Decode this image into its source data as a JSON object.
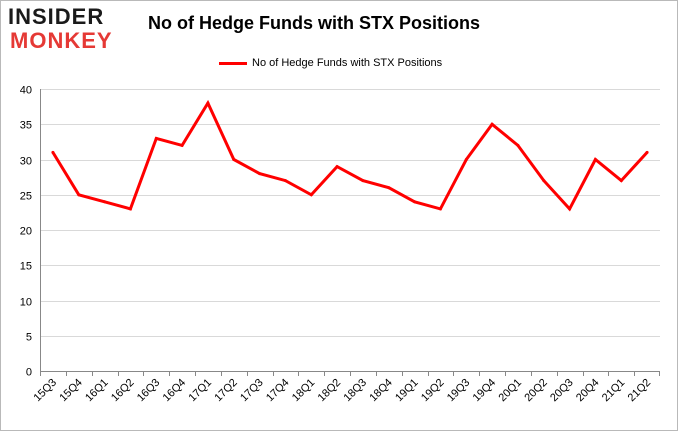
{
  "logo": {
    "line1": "INSIDER",
    "line2": "MONKEY"
  },
  "chart_data": {
    "type": "line",
    "title": "No of Hedge Funds with STX Positions",
    "xlabel": "",
    "ylabel": "",
    "categories": [
      "15Q3",
      "15Q4",
      "16Q1",
      "16Q2",
      "16Q3",
      "16Q4",
      "17Q1",
      "17Q2",
      "17Q3",
      "17Q4",
      "18Q1",
      "18Q2",
      "18Q3",
      "18Q4",
      "19Q1",
      "19Q2",
      "19Q3",
      "19Q4",
      "20Q1",
      "20Q2",
      "20Q3",
      "20Q4",
      "21Q1",
      "21Q2"
    ],
    "series": [
      {
        "name": "No of Hedge Funds with STX Positions",
        "values": [
          31,
          25,
          24,
          23,
          33,
          32,
          38,
          30,
          28,
          27,
          25,
          29,
          27,
          26,
          24,
          23,
          30,
          35,
          32,
          27,
          23,
          30,
          27,
          31
        ],
        "color": "#ff0000"
      }
    ],
    "ylim": [
      0,
      40
    ],
    "yticks": [
      0,
      5,
      10,
      15,
      20,
      25,
      30,
      35,
      40
    ],
    "grid": true,
    "legend": "top"
  }
}
